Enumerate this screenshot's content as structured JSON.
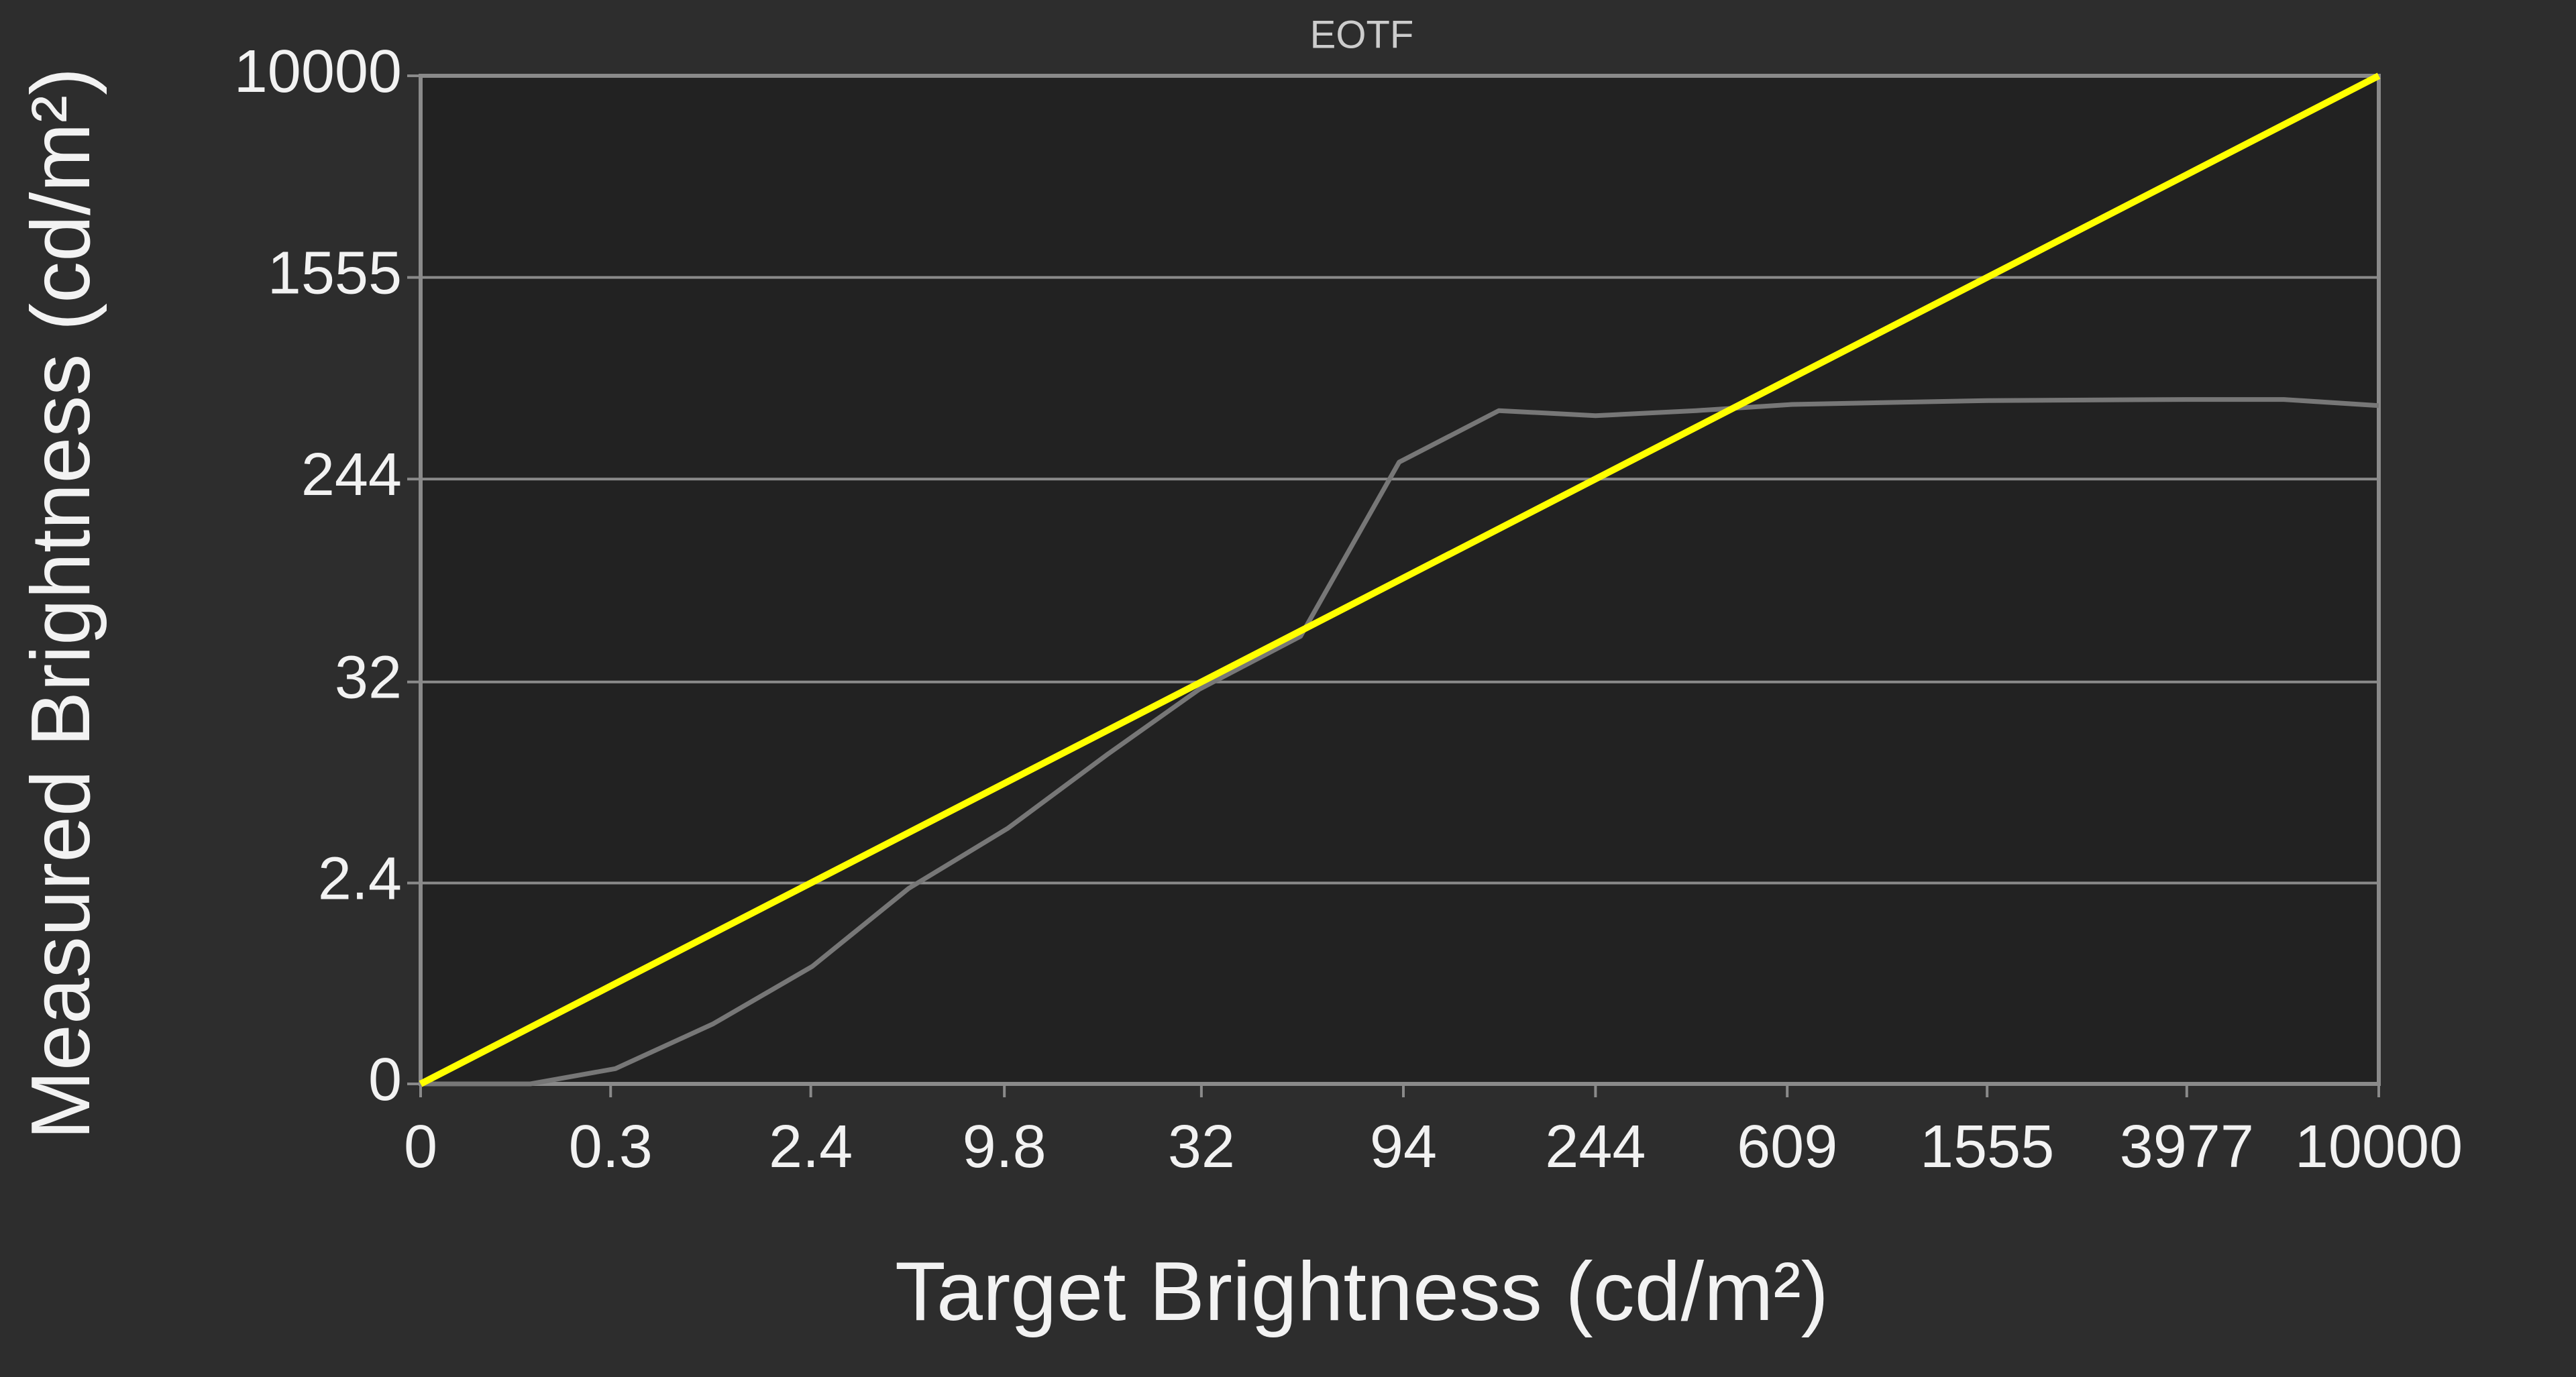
{
  "chart_data": {
    "type": "line",
    "title": "EOTF",
    "x_label": "Target Brightness (cd/m²)",
    "y_label": "Measured Brightness (cd/m²)",
    "scale": "pq",
    "xlim": [
      0,
      10000
    ],
    "ylim": [
      0,
      10000
    ],
    "xticks": [
      0,
      0.3,
      2.4,
      9.8,
      32,
      94,
      244,
      609,
      1555,
      3977,
      10000
    ],
    "yticks": [
      0,
      2.4,
      32,
      244,
      1555,
      10000
    ],
    "grid": true,
    "series": [
      {
        "color": "#777777",
        "x": [
          0,
          0.078,
          0.32,
          0.99,
          2.43,
          5.1,
          10,
          18.6,
          31.6,
          55,
          92,
          152,
          244,
          396,
          623,
          1555,
          3977,
          6316,
          10000
        ],
        "values": [
          0,
          0,
          0.005,
          0.09,
          0.49,
          2.2,
          5.4,
          14,
          29.5,
          52,
          286,
          461,
          440,
          461,
          488,
          506,
          511,
          511,
          483
        ]
      },
      {
        "color": "#ffff00",
        "x": [
          0,
          0.3,
          2.4,
          9.8,
          32,
          94,
          244,
          609,
          1555,
          3977,
          10000
        ],
        "values": [
          0,
          0.3,
          2.4,
          9.8,
          32,
          94,
          244,
          609,
          1555,
          3977,
          10000
        ]
      }
    ]
  }
}
